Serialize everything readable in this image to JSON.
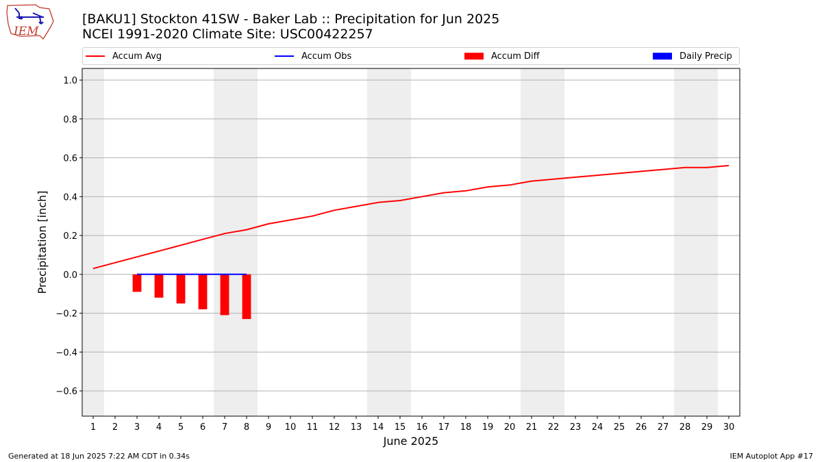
{
  "header": {
    "title_line1": "[BAKU1] Stockton 41SW - Baker Lab :: Precipitation for Jun 2025",
    "title_line2": "NCEI 1991-2020 Climate Site: USC00422257"
  },
  "logo": {
    "text": "IEM"
  },
  "footer": {
    "generated": "Generated at 18 Jun 2025 7:22 AM CDT in 0.34s",
    "app": "IEM Autoplot App #17"
  },
  "legend": {
    "items": [
      {
        "label": "Accum Avg",
        "kind": "line",
        "color": "#ff0000"
      },
      {
        "label": "Accum Obs",
        "kind": "line",
        "color": "#0000ff"
      },
      {
        "label": "Accum Diff",
        "kind": "box",
        "color": "#ff0000"
      },
      {
        "label": "Daily Precip",
        "kind": "box",
        "color": "#0000ff"
      }
    ]
  },
  "chart_data": {
    "type": "line",
    "xlabel": "June 2025",
    "ylabel": "Precipitation [inch]",
    "xlim": [
      0.5,
      30.5
    ],
    "ylim": [
      -0.73,
      1.06
    ],
    "yticks": [
      -0.6,
      -0.4,
      -0.2,
      0.0,
      0.2,
      0.4,
      0.6,
      0.8,
      1.0
    ],
    "ytick_labels": [
      "−0.6",
      "−0.4",
      "−0.2",
      "0.0",
      "0.2",
      "0.4",
      "0.6",
      "0.8",
      "1.0"
    ],
    "x": [
      1,
      2,
      3,
      4,
      5,
      6,
      7,
      8,
      9,
      10,
      11,
      12,
      13,
      14,
      15,
      16,
      17,
      18,
      19,
      20,
      21,
      22,
      23,
      24,
      25,
      26,
      27,
      28,
      29,
      30
    ],
    "xtick_labels": [
      "1",
      "2",
      "3",
      "4",
      "5",
      "6",
      "7",
      "8",
      "9",
      "10",
      "11",
      "12",
      "13",
      "14",
      "15",
      "16",
      "17",
      "18",
      "19",
      "20",
      "21",
      "22",
      "23",
      "24",
      "25",
      "26",
      "27",
      "28",
      "29",
      "30"
    ],
    "weekend_bands": [
      [
        0.5,
        1.5
      ],
      [
        6.5,
        8.5
      ],
      [
        13.5,
        15.5
      ],
      [
        20.5,
        22.5
      ],
      [
        27.5,
        29.5
      ]
    ],
    "grid": "horizontal",
    "legend_position": "top",
    "series": [
      {
        "name": "Accum Avg",
        "type": "line",
        "color": "#ff0000",
        "x": [
          1,
          2,
          3,
          4,
          5,
          6,
          7,
          8,
          9,
          10,
          11,
          12,
          13,
          14,
          15,
          16,
          17,
          18,
          19,
          20,
          21,
          22,
          23,
          24,
          25,
          26,
          27,
          28,
          29,
          30
        ],
        "values": [
          0.03,
          0.06,
          0.09,
          0.12,
          0.15,
          0.18,
          0.21,
          0.23,
          0.26,
          0.28,
          0.3,
          0.33,
          0.35,
          0.37,
          0.38,
          0.4,
          0.42,
          0.43,
          0.45,
          0.46,
          0.48,
          0.49,
          0.5,
          0.51,
          0.52,
          0.53,
          0.54,
          0.55,
          0.55,
          0.56
        ]
      },
      {
        "name": "Accum Obs",
        "type": "line",
        "color": "#0000ff",
        "x": [
          3,
          4,
          5,
          6,
          7,
          8
        ],
        "values": [
          0.0,
          0.0,
          0.0,
          0.0,
          0.0,
          0.0
        ]
      },
      {
        "name": "Accum Diff",
        "type": "bar",
        "color": "#ff0000",
        "x": [
          3,
          4,
          5,
          6,
          7,
          8
        ],
        "values": [
          -0.09,
          -0.12,
          -0.15,
          -0.18,
          -0.21,
          -0.23
        ]
      },
      {
        "name": "Daily Precip",
        "type": "bar",
        "color": "#0000ff",
        "x": [
          3,
          4,
          5,
          6,
          7,
          8
        ],
        "values": [
          0,
          0,
          0,
          0,
          0,
          0
        ]
      }
    ]
  }
}
